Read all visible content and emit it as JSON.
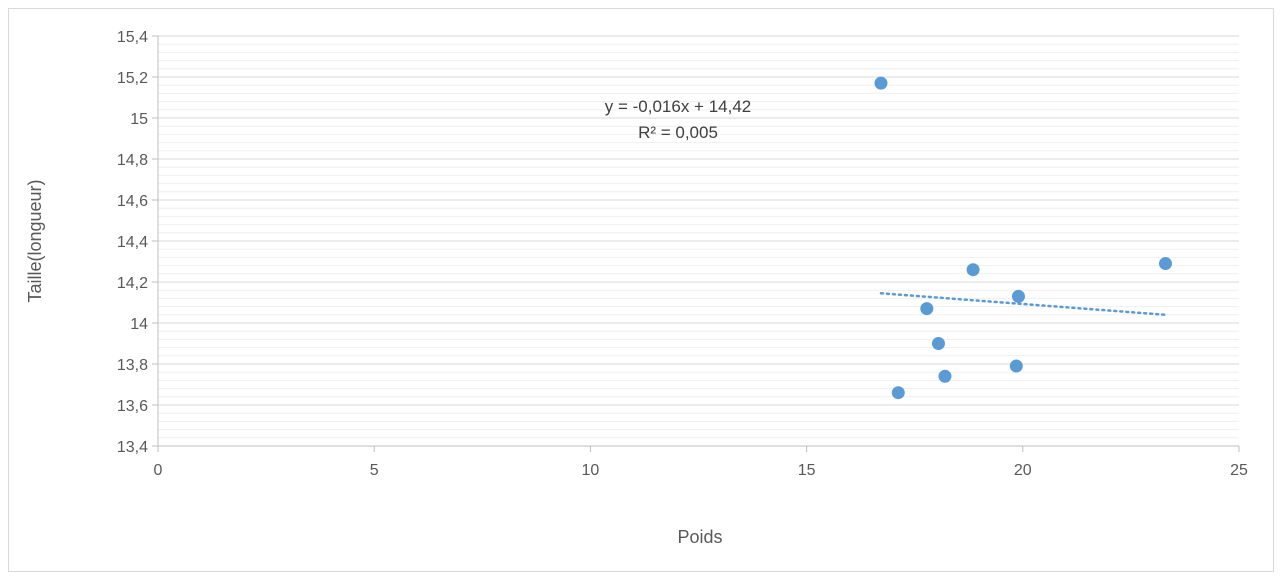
{
  "chart_data": {
    "type": "scatter",
    "title": "",
    "xlabel": "Poids",
    "ylabel": "Taille(longueur)",
    "xlim": [
      0,
      25
    ],
    "ylim": [
      13.4,
      15.4
    ],
    "x_ticks": [
      "0",
      "5",
      "10",
      "15",
      "20",
      "25"
    ],
    "y_ticks": [
      "13,4",
      "13,6",
      "13,8",
      "14",
      "14,2",
      "14,4",
      "14,6",
      "14,8",
      "15",
      "15,2",
      "15,4"
    ],
    "grid": "major and minor horizontal",
    "series": [
      {
        "points": [
          {
            "x": 16.72,
            "y": 15.17
          },
          {
            "x": 17.12,
            "y": 13.66
          },
          {
            "x": 17.78,
            "y": 14.07
          },
          {
            "x": 18.05,
            "y": 13.9
          },
          {
            "x": 18.2,
            "y": 13.74
          },
          {
            "x": 18.85,
            "y": 14.26
          },
          {
            "x": 19.85,
            "y": 13.79
          },
          {
            "x": 19.9,
            "y": 14.13
          },
          {
            "x": 23.3,
            "y": 14.29
          }
        ],
        "color": "#5B9BD5"
      }
    ],
    "trendline": {
      "x_range": [
        16.72,
        23.3
      ],
      "y_range": [
        14.145,
        14.04
      ],
      "equation": "y = -0,016x + 14,42",
      "r_squared": "R² = 0,005",
      "style": "dotted",
      "color": "#5B9BD5"
    }
  }
}
